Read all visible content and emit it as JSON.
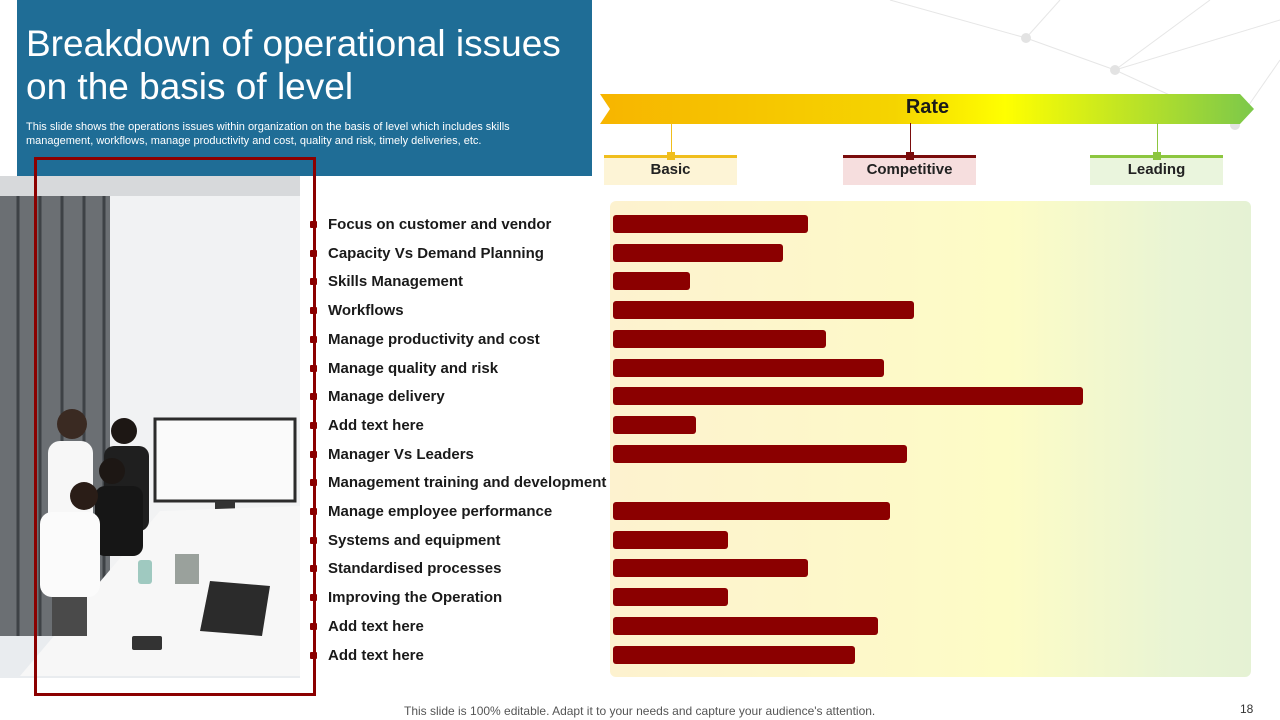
{
  "slide": {
    "title": "Breakdown of operational issues on the basis of level",
    "subtitle": "This slide shows the operations issues within organization on the basis of level which includes skills management, workflows, manage productivity and cost, quality and risk, timely deliveries, etc.",
    "footer": "This slide is 100% editable. Adapt it to your needs and capture your audience's attention.",
    "page_number": "18"
  },
  "colors": {
    "title_bg": "#1f6d96",
    "bar": "#8b0000",
    "basic": "#f0be1d",
    "competitive": "#7a0c0c",
    "leading": "#8cc63f"
  },
  "chart_data": {
    "type": "bar",
    "orientation": "horizontal",
    "title": "Rate",
    "levels": [
      "Basic",
      "Competitive",
      "Leading"
    ],
    "categories": [
      "Focus on customer and vendor",
      "Capacity Vs Demand Planning",
      "Skills Management",
      "Workflows",
      "Manage productivity and cost",
      "Manage quality and risk",
      "Manage delivery",
      "Add  text here",
      "Manager Vs Leaders",
      "Management training and development",
      "Manage employee performance",
      "Systems and equipment",
      "Standardised processes",
      "Improving the Operation",
      "Add  text here",
      "Add  text here"
    ],
    "values": [
      30.5,
      26.5,
      12,
      47,
      33.3,
      42.4,
      73.5,
      13,
      46,
      0,
      43.3,
      18,
      30.5,
      18,
      41.4,
      37.8
    ],
    "xlim": [
      0,
      100
    ],
    "grid": false,
    "legend": "none"
  }
}
